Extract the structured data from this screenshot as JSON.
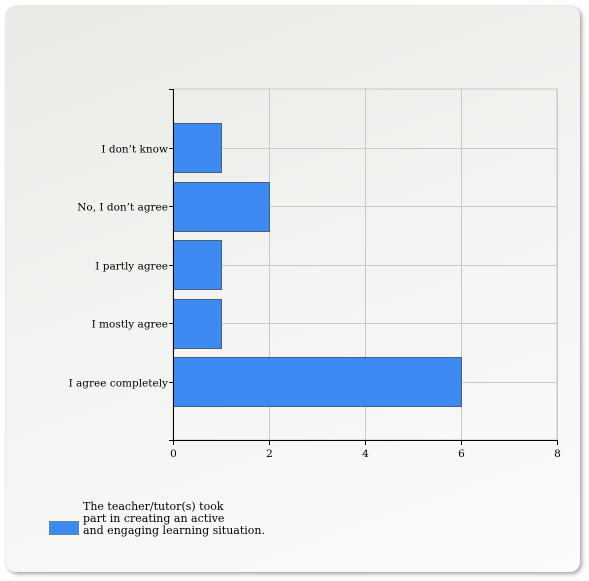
{
  "chart_data": {
    "type": "bar",
    "orientation": "horizontal",
    "categories": [
      "I don’t know",
      "No, I don’t agree",
      "I partly agree",
      "I mostly agree",
      "I agree completely"
    ],
    "series": [
      {
        "name": "The teacher/tutor(s) took\npart in creating an active\nand engaging learning situation.",
        "values": [
          1,
          2,
          1,
          1,
          6
        ],
        "color": "#3d8af3"
      }
    ],
    "xlim": [
      0,
      8
    ],
    "xticks": [
      0,
      2,
      4,
      6,
      8
    ],
    "grid": true,
    "legend_position": "bottom-left",
    "title": "",
    "xlabel": "",
    "ylabel": ""
  }
}
